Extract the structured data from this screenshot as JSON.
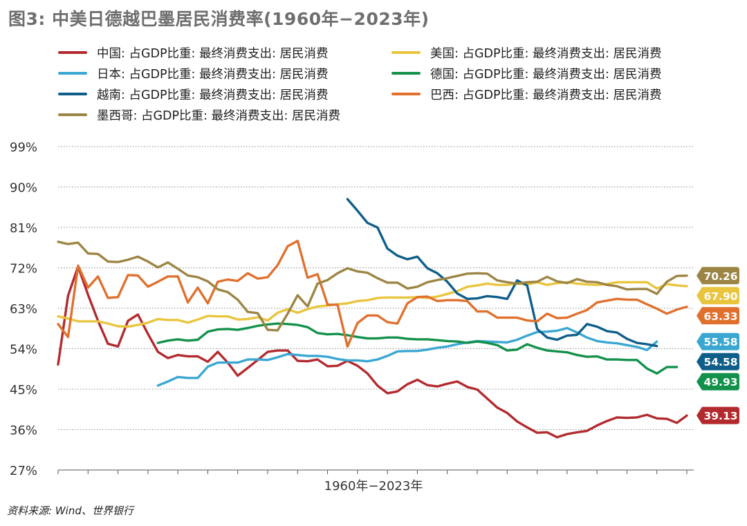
{
  "title": "图3: 中美日德越巴墨居民消费率(1960年−2023年)",
  "source": "资料来源: Wind、世界银行",
  "chart_data": {
    "type": "line",
    "xlabel": "1960年−2023年",
    "ylabel": "",
    "ylim": [
      27,
      99
    ],
    "yticks": [
      "27%",
      "36%",
      "45%",
      "54%",
      "63%",
      "72%",
      "81%",
      "90%",
      "99%"
    ],
    "ytick_values": [
      27,
      36,
      45,
      54,
      63,
      72,
      81,
      90,
      99
    ],
    "x_start": 1960,
    "x_end": 2023,
    "grid": "horizontal dotted",
    "legend_position": "top",
    "series": [
      {
        "name": "中国: 占GDP比重: 最终消费支出: 居民消费",
        "color": "#b22a2e",
        "start_year": 1960,
        "end_label": "39.13",
        "values": [
          50.5,
          65.8,
          72.3,
          66,
          60.2,
          55.1,
          54.5,
          60.2,
          61.6,
          57.3,
          53.3,
          51.9,
          52.6,
          52.3,
          52.3,
          51.1,
          53.3,
          50.9,
          48,
          49.7,
          51.5,
          53.3,
          53.6,
          53.6,
          51.3,
          51.2,
          51.6,
          50.1,
          50.2,
          51.3,
          50.2,
          48.5,
          45.8,
          44.1,
          44.5,
          46.1,
          47.1,
          45.9,
          45.6,
          46.2,
          46.7,
          45.5,
          44.9,
          42.9,
          40.9,
          39.7,
          37.8,
          36.5,
          35.3,
          35.4,
          34.3,
          35,
          35.4,
          35.7,
          36.9,
          37.9,
          38.7,
          38.6,
          38.7,
          39.3,
          38.5,
          38.4,
          37.5,
          39.13
        ]
      },
      {
        "name": "美国: 占GDP比重: 最终消费支出: 居民消费",
        "color": "#e9c53e",
        "start_year": 1960,
        "end_label": "67.90",
        "values": [
          61.2,
          60.7,
          60.1,
          60.1,
          60.1,
          59.6,
          59,
          58.9,
          59.3,
          59.8,
          60.6,
          60.4,
          60.4,
          59.8,
          60.5,
          61.3,
          61.2,
          61.2,
          60.5,
          60.6,
          61,
          60.3,
          62,
          62.8,
          62,
          62.8,
          63.4,
          63.6,
          63.9,
          64.1,
          64.6,
          64.8,
          65.3,
          65.4,
          65.4,
          65.4,
          65.5,
          65.3,
          65.6,
          66.2,
          66.8,
          67.8,
          68.1,
          68.5,
          68.2,
          68.2,
          68.5,
          68.3,
          68.8,
          68.2,
          68.6,
          68.8,
          68.5,
          68.3,
          68.2,
          68.4,
          68.8,
          68.8,
          68.8,
          68.8,
          67.4,
          68.4,
          68.1,
          67.9
        ]
      },
      {
        "name": "日本: 占GDP比重: 最终消费支出: 居民消费",
        "color": "#3aa7d2",
        "start_year": 1970,
        "end_label": "55.58",
        "values": [
          45.8,
          46.7,
          47.7,
          47.5,
          47.5,
          50,
          50.9,
          50.9,
          50.9,
          51.6,
          51.6,
          51.5,
          52.1,
          52.8,
          52.6,
          52.4,
          52.4,
          52.2,
          51.7,
          51.4,
          51.4,
          51.2,
          51.6,
          52.4,
          53.4,
          53.5,
          53.5,
          53.8,
          54.2,
          54.5,
          55,
          55.4,
          55.7,
          55.6,
          55.5,
          55.4,
          56,
          56.9,
          57.7,
          57.8,
          58,
          58.6,
          57.6,
          56.5,
          55.7,
          55.4,
          55.2,
          54.8,
          54.4,
          53.7,
          55.58
        ]
      },
      {
        "name": "德国: 占GDP比重: 最终消费支出: 居民消费",
        "color": "#13914b",
        "start_year": 1970,
        "end_label": "49.93",
        "values": [
          55.3,
          55.8,
          56.1,
          55.8,
          56,
          57.8,
          58.3,
          58.4,
          58.2,
          58.6,
          59.1,
          59.4,
          59.6,
          59.5,
          59.3,
          58.8,
          57.5,
          57.2,
          57.3,
          57,
          56.6,
          56.3,
          56.3,
          56.5,
          56.5,
          56.2,
          56.1,
          56.1,
          55.9,
          55.7,
          55.6,
          55.3,
          55.6,
          55.3,
          54.8,
          53.6,
          53.8,
          55,
          54.2,
          53.6,
          53.4,
          53.2,
          52.6,
          52.2,
          52.3,
          51.6,
          51.6,
          51.5,
          51.5,
          49.6,
          48.5,
          49.9,
          49.93
        ]
      },
      {
        "name": "越南: 占GDP比重: 最终消费支出: 居民消费",
        "color": "#0f5e8a",
        "start_year": 1989,
        "end_label": "54.58",
        "values": [
          87.3,
          84.7,
          82,
          81,
          76.3,
          74.7,
          73.9,
          74.5,
          71.9,
          70.8,
          68.9,
          66.3,
          65.1,
          65.2,
          65.7,
          65.5,
          65.1,
          69.2,
          68.1,
          58.4,
          56.5,
          56,
          56.9,
          57.1,
          59.5,
          58.9,
          57.9,
          57.6,
          56.2,
          55.3,
          55,
          54.58
        ]
      },
      {
        "name": "巴西: 占GDP比重: 最终消费支出: 居民消费",
        "color": "#e0702e",
        "start_year": 1960,
        "end_label": "63.33",
        "values": [
          59.5,
          56.6,
          72.5,
          67.6,
          70.1,
          65.3,
          65.5,
          70.4,
          70.3,
          67.8,
          68.9,
          70.1,
          70.1,
          64.3,
          67.6,
          64.1,
          68.9,
          69.4,
          69.1,
          70.8,
          69.6,
          69.9,
          72.6,
          76.8,
          78,
          69.8,
          70.6,
          63.8,
          63.8,
          54.5,
          59.7,
          61.4,
          61.4,
          59.9,
          59.6,
          64.1,
          65.5,
          65.6,
          64.6,
          64.8,
          64.8,
          64.6,
          62.3,
          62.3,
          60.9,
          60.9,
          60.9,
          60.3,
          60.1,
          61.8,
          60.8,
          60.9,
          61.8,
          62.6,
          64.3,
          64.7,
          65.1,
          64.9,
          64.9,
          63.9,
          62.9,
          61.8,
          62.7,
          63.33
        ]
      },
      {
        "name": "墨西哥: 占GDP比重: 最终消费支出: 居民消费",
        "color": "#9c8544",
        "start_year": 1960,
        "end_label": "70.26",
        "values": [
          77.8,
          77.3,
          77.6,
          75.2,
          75.1,
          73.4,
          73.3,
          73.8,
          74.5,
          73.4,
          72.1,
          73.2,
          71.8,
          70.3,
          69.9,
          69,
          67.2,
          66.6,
          64.9,
          62.2,
          61.9,
          58.2,
          58.1,
          61.8,
          65.9,
          63.4,
          68.5,
          69.3,
          70.8,
          71.9,
          71.2,
          70.9,
          69.7,
          68.7,
          68.7,
          67.4,
          67.8,
          68.8,
          69.3,
          69.7,
          70.2,
          70.7,
          70.8,
          70.7,
          69.2,
          68.8,
          68.5,
          68.8,
          68.9,
          70,
          69,
          68.6,
          69.5,
          68.9,
          68.8,
          68.2,
          67.9,
          67.2,
          67.3,
          67.3,
          66.2,
          68.9,
          70.2,
          70.26
        ]
      }
    ]
  }
}
